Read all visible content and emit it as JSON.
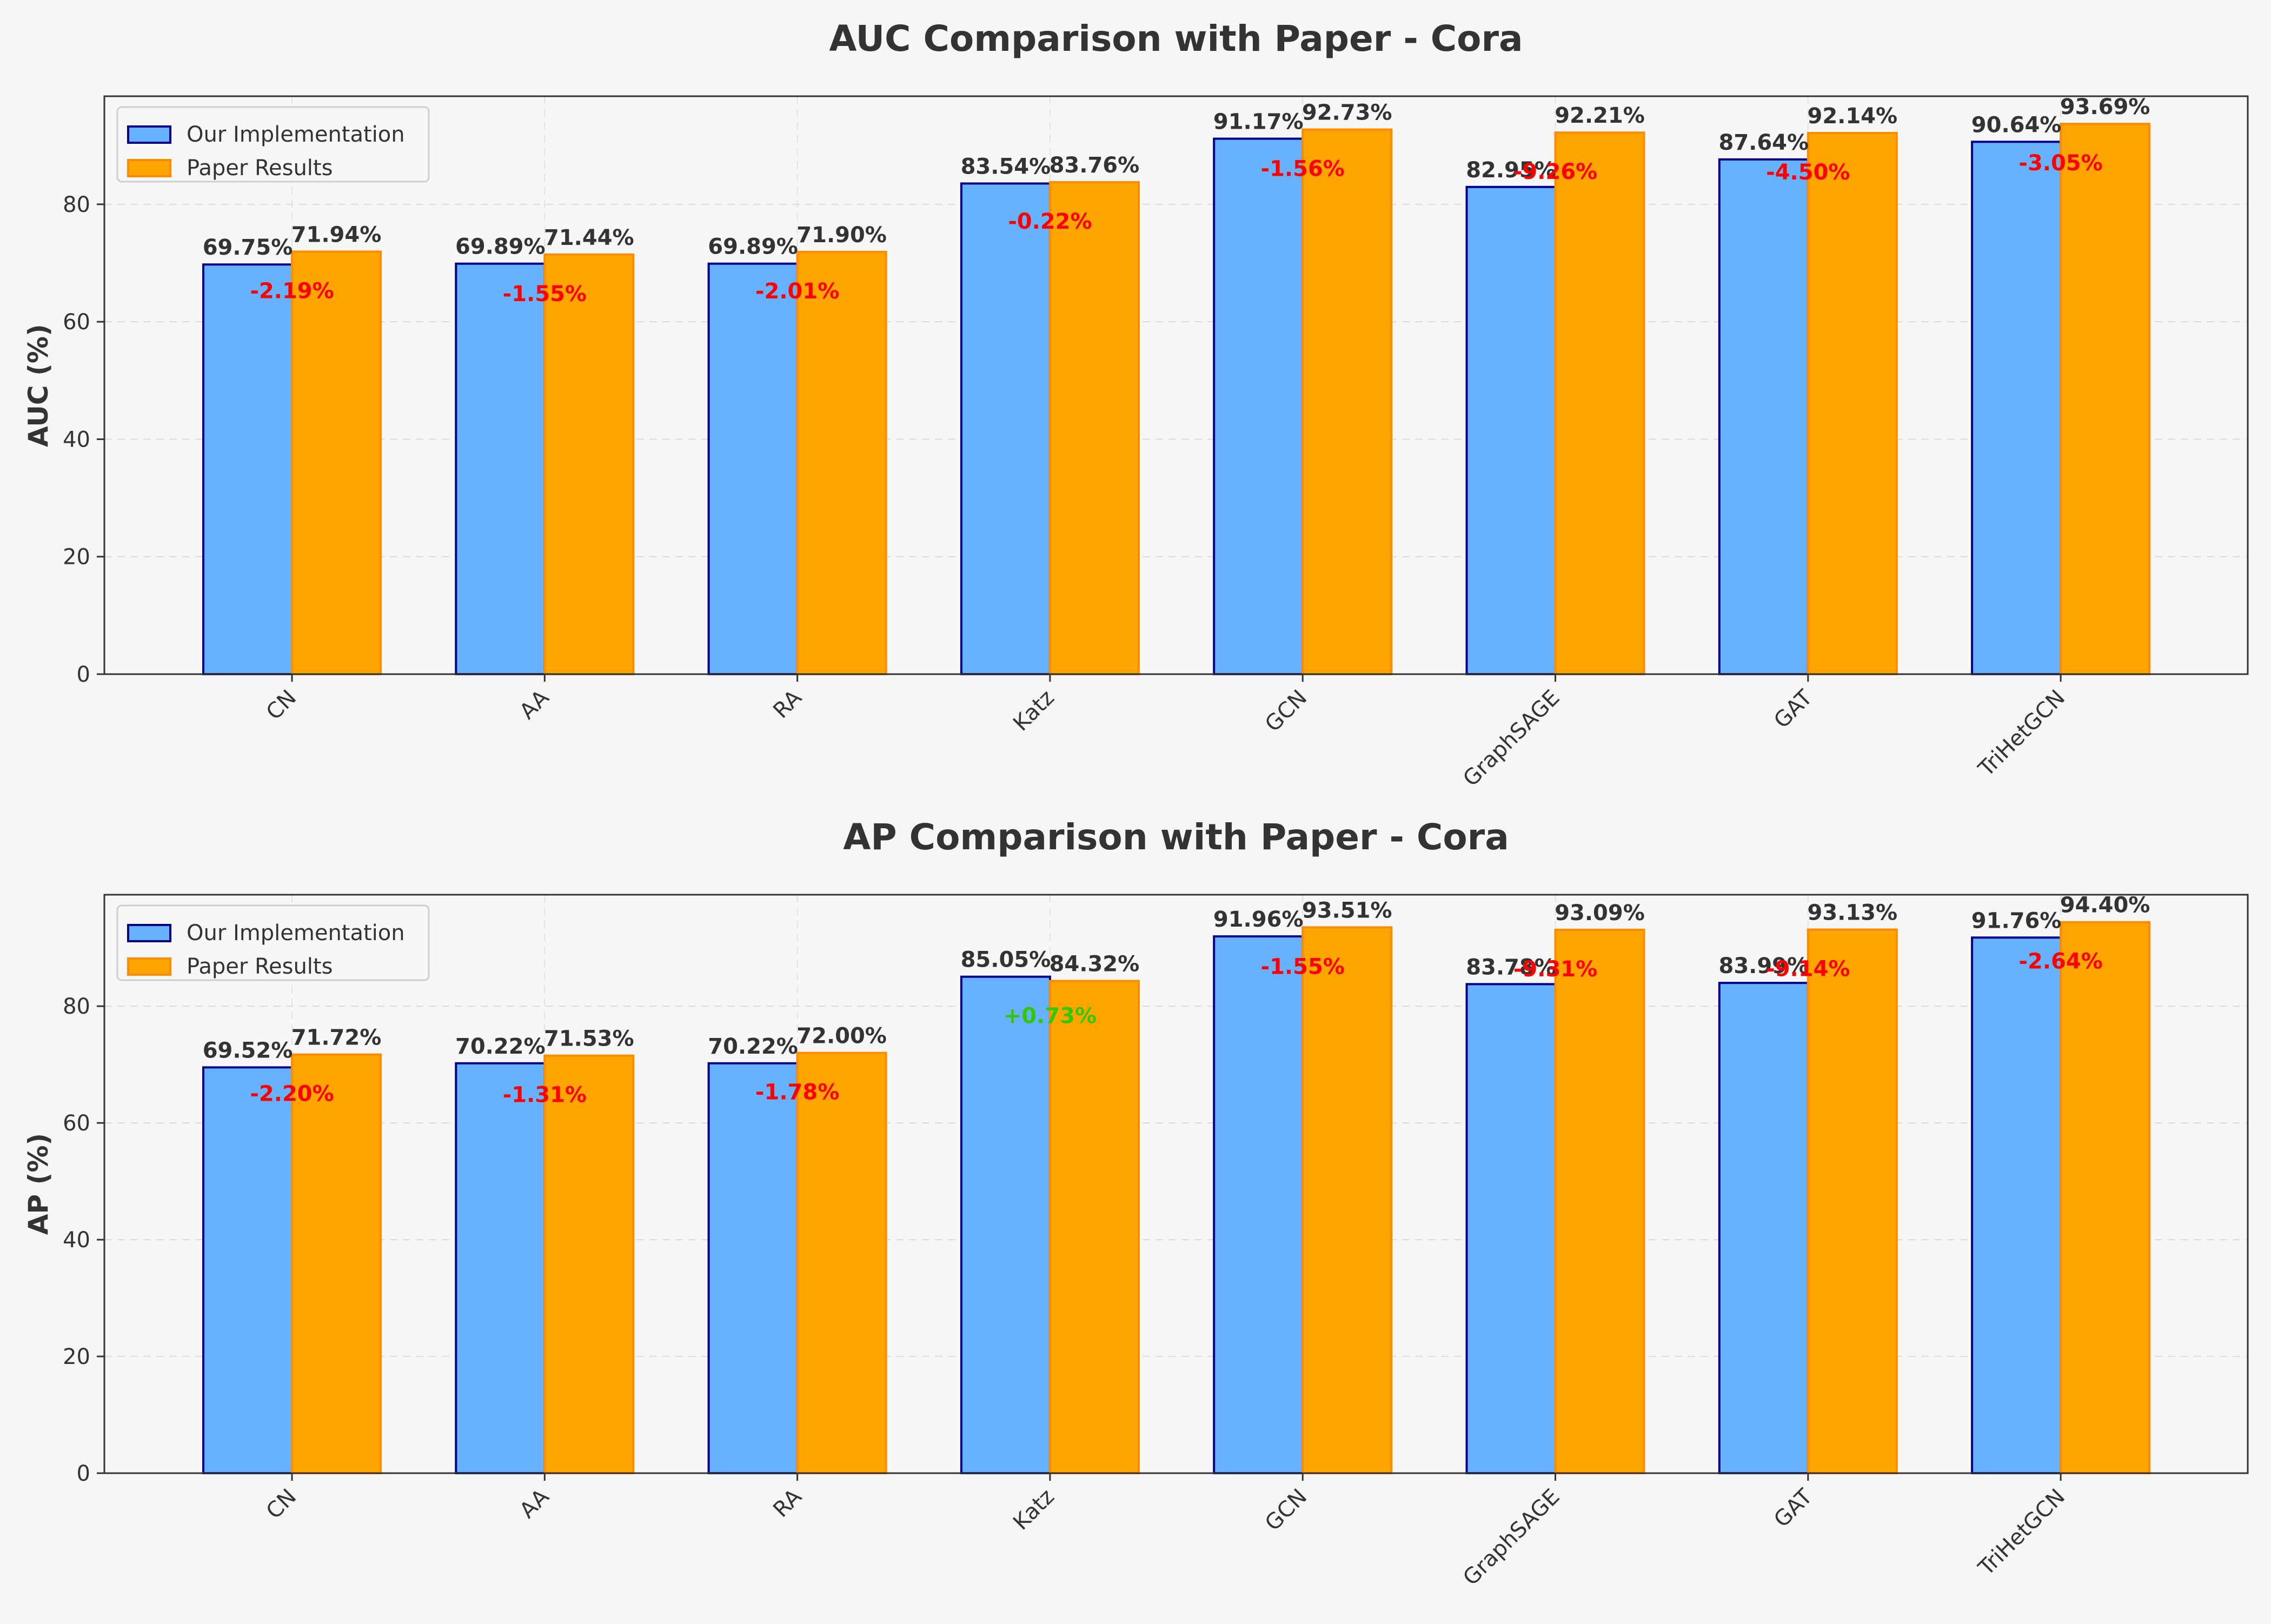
{
  "colors": {
    "background": "#f6f6f6",
    "plot_bg": "#f7f7f7",
    "ours_fill": "#66b2ff",
    "ours_edge": "#00008b",
    "paper_fill": "#ffa500",
    "paper_edge": "#ff8c00",
    "diff_negative": "#ff0000",
    "diff_positive": "#32c800",
    "text": "#333333"
  },
  "chart_data": [
    {
      "type": "bar",
      "title": "AUC Comparison with Paper - Cora",
      "xlabel": "",
      "ylabel": "AUC (%)",
      "ylim": [
        0,
        98.4
      ],
      "yticks": [
        "0",
        "20",
        "40",
        "60",
        "80"
      ],
      "grid": true,
      "legend_position": "top-left",
      "categories": [
        "CN",
        "AA",
        "RA",
        "Katz",
        "GCN",
        "GraphSAGE",
        "GAT",
        "TriHetGCN"
      ],
      "series": [
        {
          "name": "Our Implementation",
          "values": [
            69.75,
            69.89,
            69.89,
            83.54,
            91.17,
            82.95,
            87.64,
            90.64
          ],
          "labels": [
            "69.75%",
            "69.89%",
            "69.89%",
            "83.54%",
            "91.17%",
            "82.95%",
            "87.64%",
            "90.64%"
          ]
        },
        {
          "name": "Paper Results",
          "values": [
            71.94,
            71.44,
            71.9,
            83.76,
            92.73,
            92.21,
            92.14,
            93.69
          ],
          "labels": [
            "71.94%",
            "71.44%",
            "71.90%",
            "83.76%",
            "92.73%",
            "92.21%",
            "92.14%",
            "93.69%"
          ]
        }
      ],
      "differences": [
        "-2.19%",
        "-1.55%",
        "-2.01%",
        "-0.22%",
        "-1.56%",
        "-9.26%",
        "-4.50%",
        "-3.05%"
      ]
    },
    {
      "type": "bar",
      "title": "AP Comparison with Paper - Cora",
      "xlabel": "",
      "ylabel": "AP (%)",
      "ylim": [
        0,
        99.1
      ],
      "yticks": [
        "0",
        "20",
        "40",
        "60",
        "80"
      ],
      "grid": true,
      "legend_position": "top-left",
      "categories": [
        "CN",
        "AA",
        "RA",
        "Katz",
        "GCN",
        "GraphSAGE",
        "GAT",
        "TriHetGCN"
      ],
      "series": [
        {
          "name": "Our Implementation",
          "values": [
            69.52,
            70.22,
            70.22,
            85.05,
            91.96,
            83.78,
            83.99,
            91.76
          ],
          "labels": [
            "69.52%",
            "70.22%",
            "70.22%",
            "85.05%",
            "91.96%",
            "83.78%",
            "83.99%",
            "91.76%"
          ]
        },
        {
          "name": "Paper Results",
          "values": [
            71.72,
            71.53,
            72.0,
            84.32,
            93.51,
            93.09,
            93.13,
            94.4
          ],
          "labels": [
            "71.72%",
            "71.53%",
            "72.00%",
            "84.32%",
            "93.51%",
            "93.09%",
            "93.13%",
            "94.40%"
          ]
        }
      ],
      "differences": [
        "-2.20%",
        "-1.31%",
        "-1.78%",
        "+0.73%",
        "-1.55%",
        "-9.31%",
        "-9.14%",
        "-2.64%"
      ]
    }
  ]
}
